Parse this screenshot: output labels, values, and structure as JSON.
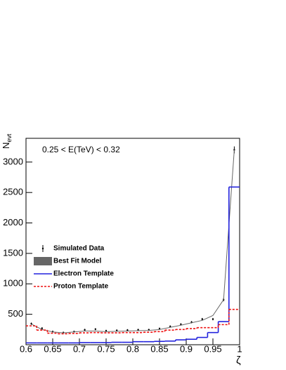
{
  "chart_data": {
    "type": "histogram",
    "annotation": "0.25 < E(TeV) < 0.32",
    "ylabel": {
      "text": "N",
      "sub": "evt"
    },
    "xlabel": "ζ",
    "bins": [
      0.6,
      0.62,
      0.64,
      0.66,
      0.68,
      0.7,
      0.72,
      0.74,
      0.76,
      0.78,
      0.8,
      0.82,
      0.84,
      0.86,
      0.88,
      0.9,
      0.92,
      0.94,
      0.96,
      0.98,
      1.0
    ],
    "xlim": [
      0.6,
      1.0
    ],
    "xticks": [
      0.6,
      0.65,
      0.7,
      0.75,
      0.8,
      0.85,
      0.9,
      0.95,
      1
    ],
    "ylim": [
      0,
      3390
    ],
    "yticks": [
      500,
      1000,
      1500,
      2000,
      2500,
      3000
    ],
    "series": [
      {
        "name": "Simulated Data",
        "style": "points",
        "color": "#000000",
        "values": [
          345,
          270,
          215,
          200,
          215,
          245,
          255,
          230,
          235,
          240,
          245,
          245,
          265,
          300,
          335,
          370,
          420,
          420,
          740,
          3200
        ],
        "errors": [
          19,
          16,
          15,
          14,
          15,
          16,
          16,
          15,
          15,
          16,
          16,
          16,
          16,
          17,
          18,
          19,
          20,
          20,
          27,
          57
        ]
      },
      {
        "name": "Best Fit Model",
        "style": "line",
        "color": "#666666",
        "values": [
          340,
          250,
          210,
          195,
          210,
          225,
          225,
          215,
          220,
          225,
          230,
          235,
          250,
          285,
          320,
          360,
          400,
          480,
          740,
          3200
        ]
      },
      {
        "name": "Electron Template",
        "style": "step",
        "color": "#2222dd",
        "values": [
          30,
          30,
          30,
          30,
          30,
          35,
          35,
          35,
          40,
          40,
          50,
          50,
          55,
          60,
          80,
          90,
          120,
          200,
          380,
          2590
        ]
      },
      {
        "name": "Proton Template",
        "style": "dashed-step",
        "color": "#ee1111",
        "values": [
          310,
          240,
          190,
          180,
          185,
          195,
          200,
          195,
          195,
          200,
          200,
          205,
          215,
          240,
          250,
          265,
          280,
          280,
          330,
          580
        ]
      }
    ]
  }
}
